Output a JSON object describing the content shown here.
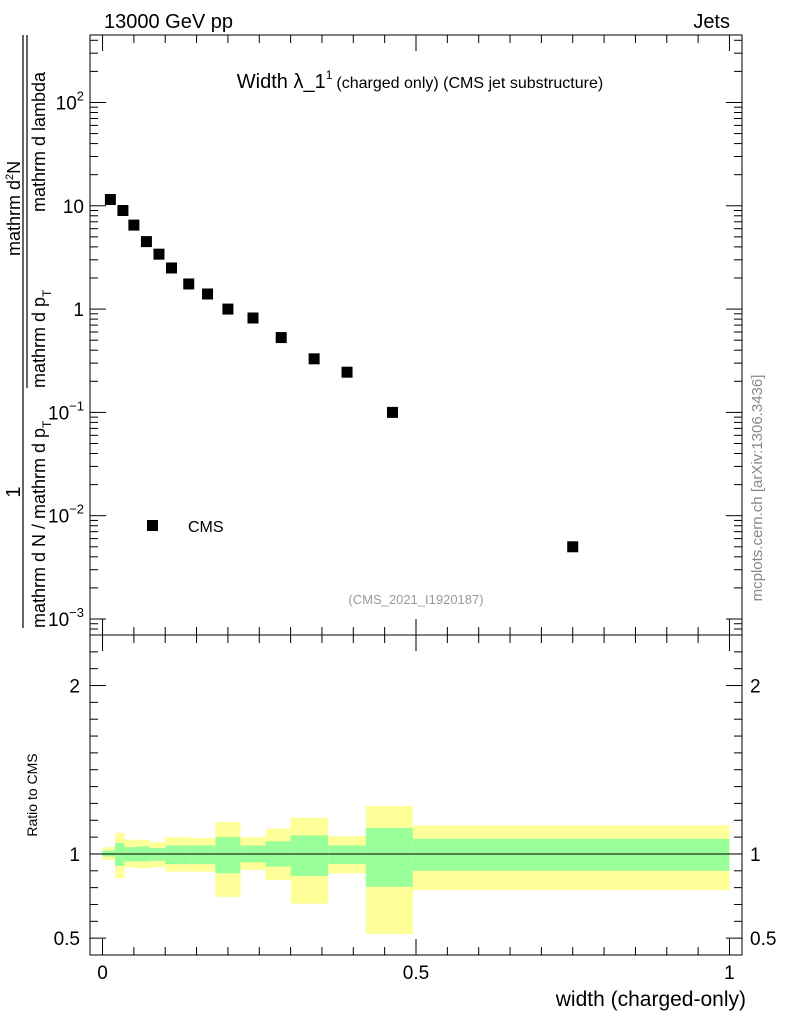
{
  "header": {
    "left": "13000 GeV pp",
    "right": "Jets"
  },
  "side_label": "mcplots.cern.ch [arXiv:1306.3436]",
  "chart_data": [
    {
      "type": "scatter",
      "title_main": "Width λ_1",
      "title_sup": "1",
      "title_rest": "(charged only) (CMS jet substructure)",
      "ylabel": {
        "one": "1",
        "denominator": "mathrm d N / mathrm d p",
        "denominator_sub": "T",
        "numerator_a": "mathrm d",
        "numerator_sup": "2",
        "numerator_b": "N",
        "numerator_c": "mathrm d p",
        "numerator_c_sub": "T",
        "numerator_d": "mathrm d lambda",
        "overall_sep": "mathrm d p"
      },
      "ylabel_text": "1 / mathrm d N / mathrm d p_T mathrm d²N / mathrm d p_T mathrm d lambda",
      "yscale": "log",
      "ylim": [
        0.0007,
        450
      ],
      "xlim": [
        -0.02,
        1.02
      ],
      "ytick_labels": [
        {
          "value": 0.001,
          "base": "10",
          "exp": "−3"
        },
        {
          "value": 0.01,
          "base": "10",
          "exp": "−2"
        },
        {
          "value": 0.1,
          "base": "10",
          "exp": "−1"
        },
        {
          "value": 1,
          "label": "1"
        },
        {
          "value": 10,
          "label": "10"
        },
        {
          "value": 100,
          "base": "10",
          "exp": "2"
        }
      ],
      "watermark": "(CMS_2021_I1920187)",
      "legend": {
        "label": "CMS",
        "placement": "bottom-left"
      },
      "series": [
        {
          "name": "CMS",
          "color": "#000000",
          "x": [
            0.0125,
            0.0325,
            0.05,
            0.07,
            0.09,
            0.11,
            0.1375,
            0.1675,
            0.2,
            0.24,
            0.285,
            0.3375,
            0.39,
            0.4625,
            0.75
          ],
          "y": [
            11.5,
            9.0,
            6.5,
            4.5,
            3.4,
            2.5,
            1.75,
            1.4,
            1.0,
            0.82,
            0.53,
            0.33,
            0.245,
            0.1,
            0.005
          ]
        }
      ]
    },
    {
      "type": "area",
      "ylabel": "Ratio to CMS",
      "xlabel": "width (charged-only)",
      "xlim": [
        -0.02,
        1.02
      ],
      "ylim": [
        0.4,
        2.3
      ],
      "xtick_labels": [
        {
          "value": 0,
          "label": "0"
        },
        {
          "value": 0.5,
          "label": "0.5"
        },
        {
          "value": 1,
          "label": "1"
        }
      ],
      "ytick_labels": [
        {
          "value": 0.5,
          "label": "0.5"
        },
        {
          "value": 1,
          "label": "1"
        },
        {
          "value": 2,
          "label": "2"
        }
      ],
      "reference_line": 1,
      "band_colors": {
        "inner": "#99ff99",
        "outer": "#ffff99"
      },
      "bins": [
        {
          "lo": 0.0,
          "hi": 0.02,
          "inner": [
            0.985,
            1.02
          ],
          "outer": [
            0.965,
            1.04
          ]
        },
        {
          "lo": 0.02,
          "hi": 0.035,
          "inner": [
            0.93,
            1.065
          ],
          "outer": [
            0.855,
            1.125
          ]
        },
        {
          "lo": 0.035,
          "hi": 0.055,
          "inner": [
            0.955,
            1.04
          ],
          "outer": [
            0.92,
            1.085
          ]
        },
        {
          "lo": 0.055,
          "hi": 0.075,
          "inner": [
            0.955,
            1.045
          ],
          "outer": [
            0.915,
            1.085
          ]
        },
        {
          "lo": 0.075,
          "hi": 0.1,
          "inner": [
            0.96,
            1.035
          ],
          "outer": [
            0.92,
            1.07
          ]
        },
        {
          "lo": 0.1,
          "hi": 0.14,
          "inner": [
            0.94,
            1.05
          ],
          "outer": [
            0.895,
            1.1
          ]
        },
        {
          "lo": 0.14,
          "hi": 0.18,
          "inner": [
            0.94,
            1.05
          ],
          "outer": [
            0.895,
            1.095
          ]
        },
        {
          "lo": 0.18,
          "hi": 0.22,
          "inner": [
            0.885,
            1.1
          ],
          "outer": [
            0.745,
            1.19
          ]
        },
        {
          "lo": 0.22,
          "hi": 0.26,
          "inner": [
            0.95,
            1.05
          ],
          "outer": [
            0.905,
            1.1
          ]
        },
        {
          "lo": 0.26,
          "hi": 0.3,
          "inner": [
            0.925,
            1.075
          ],
          "outer": [
            0.845,
            1.15
          ]
        },
        {
          "lo": 0.3,
          "hi": 0.36,
          "inner": [
            0.87,
            1.11
          ],
          "outer": [
            0.705,
            1.215
          ]
        },
        {
          "lo": 0.36,
          "hi": 0.42,
          "inner": [
            0.94,
            1.05
          ],
          "outer": [
            0.885,
            1.105
          ]
        },
        {
          "lo": 0.42,
          "hi": 0.495,
          "inner": [
            0.805,
            1.155
          ],
          "outer": [
            0.525,
            1.285
          ]
        },
        {
          "lo": 0.495,
          "hi": 1.0,
          "inner": [
            0.9,
            1.09
          ],
          "outer": [
            0.785,
            1.17
          ]
        }
      ]
    }
  ]
}
